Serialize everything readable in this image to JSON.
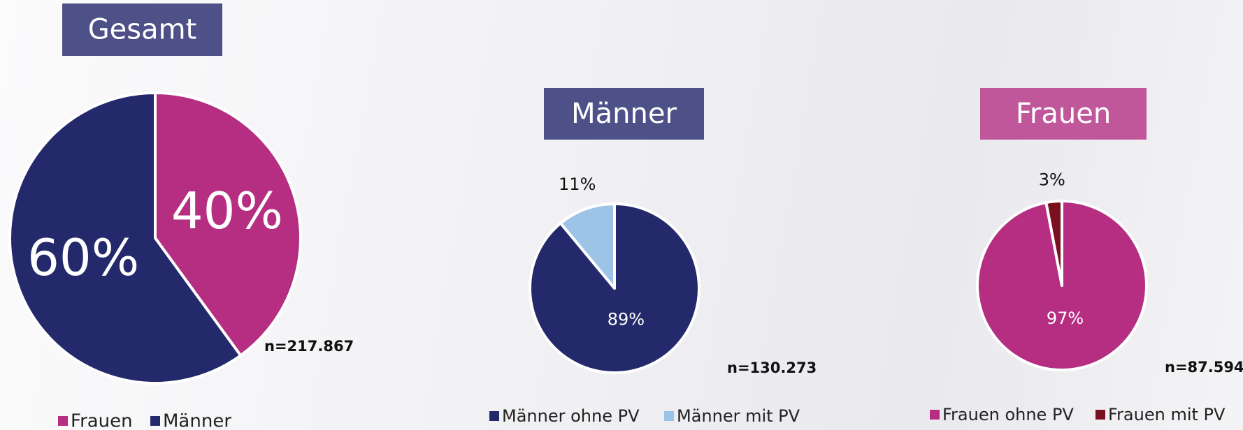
{
  "chart_data": [
    {
      "type": "pie",
      "title": "Gesamt",
      "categories": [
        "Frauen",
        "Männer"
      ],
      "values": [
        40,
        60
      ],
      "value_labels": [
        "40%",
        "60%"
      ],
      "colors": [
        "#b52e82",
        "#24296b"
      ],
      "annotation": "n=217.867",
      "title_color": "#4e5188"
    },
    {
      "type": "pie",
      "title": "Männer",
      "categories": [
        "Männer ohne PV",
        "Männer mit PV"
      ],
      "values": [
        89,
        11
      ],
      "value_labels": [
        "89%",
        "11%"
      ],
      "colors": [
        "#24296b",
        "#9dc3e6"
      ],
      "annotation": "n=130.273",
      "title_color": "#4e5188"
    },
    {
      "type": "pie",
      "title": "Frauen",
      "categories": [
        "Frauen ohne PV",
        "Frauen mit PV"
      ],
      "values": [
        97,
        3
      ],
      "value_labels": [
        "97%",
        "3%"
      ],
      "colors": [
        "#b52e82",
        "#7a0f1f"
      ],
      "annotation": "n=87.594",
      "title_color": "#c0579a"
    }
  ]
}
